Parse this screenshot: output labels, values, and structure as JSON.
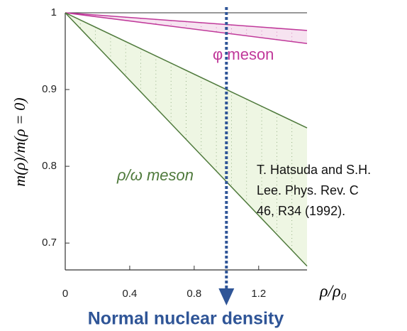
{
  "chart_data": {
    "type": "band",
    "y_label": "m(ρ)/m(ρ = 0)",
    "x_label": "ρ/ρ₀",
    "x": [
      0,
      1.5
    ],
    "series": [
      {
        "name": "φ meson",
        "color": "#c0399a",
        "fill": "#f6e3f0",
        "values": [
          1,
          0.977
        ],
        "lower": [
          1,
          0.96
        ]
      },
      {
        "name": "ρ/ω meson",
        "color": "#4f7a3c",
        "fill": "#eef6e3",
        "values": [
          1,
          0.85
        ],
        "lower": [
          1,
          0.67
        ]
      }
    ],
    "xlim": [
      0,
      1.5
    ],
    "ylim": [
      0.665,
      1
    ],
    "xticks": [
      0,
      0.4,
      0.8,
      1.2
    ],
    "yticks": [
      0.7,
      0.8,
      0.9,
      1
    ],
    "reference_x": 1,
    "reference_label": "Normal nuclear density",
    "reference_color": "#2f5597",
    "annotation": [
      "T. Hatsuda and S.H.",
      "Lee. Phys. Rev. C",
      "46, R34 (1992)."
    ]
  }
}
